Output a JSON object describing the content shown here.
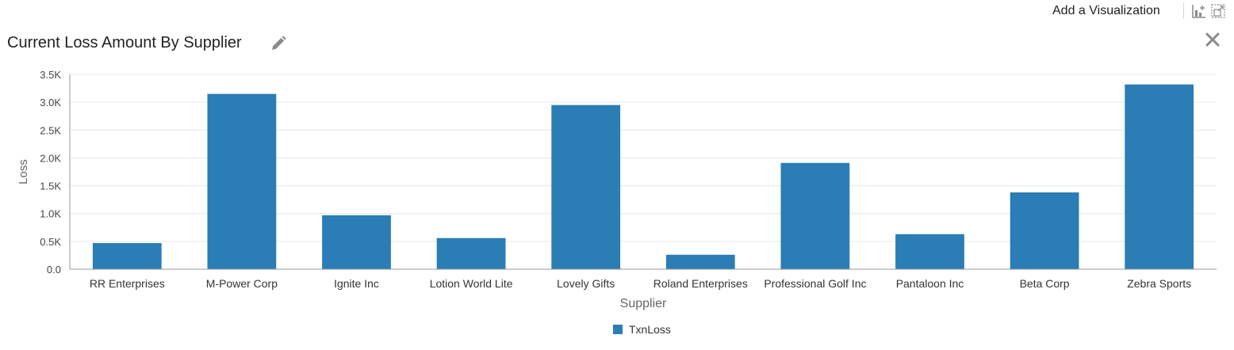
{
  "toolbar": {
    "add_visualization_label": "Add a Visualization",
    "icons": [
      "add-chart-icon",
      "expand-icon"
    ]
  },
  "header": {
    "title": "Current Loss Amount By Supplier",
    "edit_icon": "pencil-icon",
    "close_icon": "close-icon"
  },
  "colors": {
    "bar": "#2a7db5",
    "grid": "#e6e6e6",
    "axis": "#9a9a9a"
  },
  "chart_data": {
    "type": "bar",
    "categories": [
      "RR Enterprises",
      "M-Power Corp",
      "Ignite Inc",
      "Lotion World Lite",
      "Lovely Gifts",
      "Roland Enterprises",
      "Professional Golf Inc",
      "Pantaloon Inc",
      "Beta Corp",
      "Zebra Sports"
    ],
    "series": [
      {
        "name": "TxnLoss",
        "values": [
          470,
          3150,
          970,
          560,
          2950,
          260,
          1910,
          630,
          1380,
          3320
        ]
      }
    ],
    "title": "Current Loss Amount By Supplier",
    "xlabel": "Supplier",
    "ylabel": "Loss",
    "ylim": [
      0,
      3500
    ],
    "yticks": [
      0,
      500,
      1000,
      1500,
      2000,
      2500,
      3000,
      3500
    ],
    "ytick_labels": [
      "0.0",
      "0.5K",
      "1.0K",
      "1.5K",
      "2.0K",
      "2.5K",
      "3.0K",
      "3.5K"
    ],
    "grid": true,
    "legend_position": "bottom-center"
  }
}
